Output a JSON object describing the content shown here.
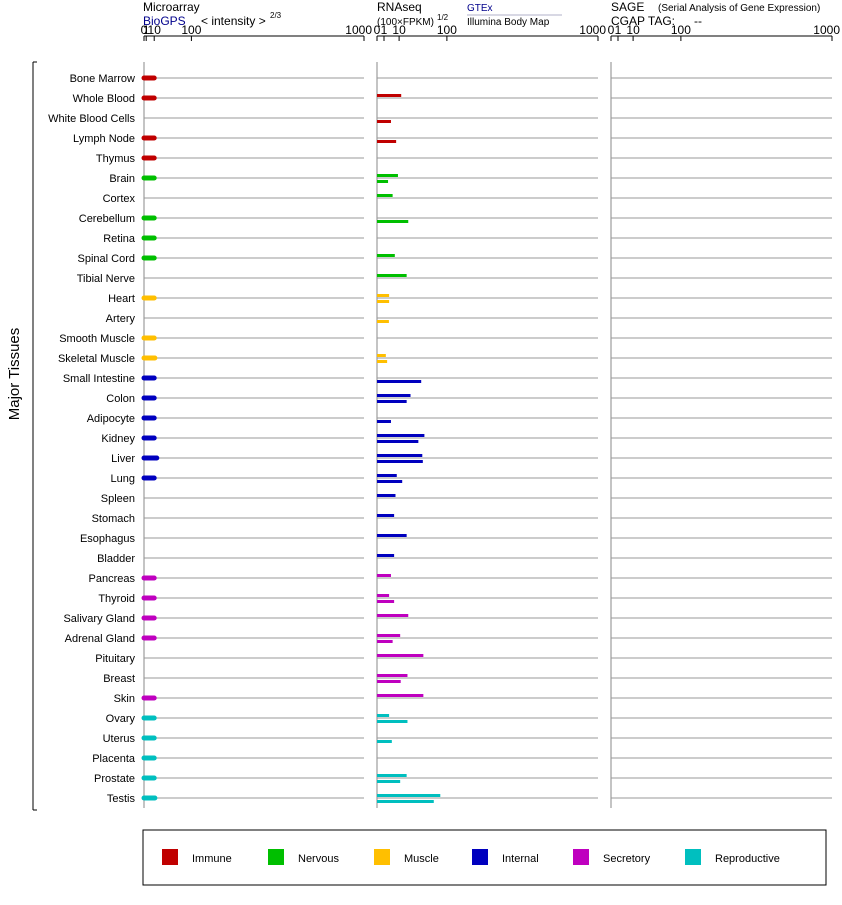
{
  "side_label": "Major Tissues",
  "panels": [
    {
      "title": "Microarray",
      "source": "BioGPS",
      "scale_label": "< intensity >",
      "scale_exp": "2/3",
      "ticks": [
        "0",
        "1",
        "10",
        "100",
        "1000"
      ]
    },
    {
      "title": "RNAseq",
      "source": "GTEx",
      "source2": "Illumina Body Map",
      "scale_label": "(100×FPKM)",
      "scale_exp": "1/2",
      "ticks": [
        "0",
        "1",
        "10",
        "100",
        "1000"
      ]
    },
    {
      "title": "SAGE",
      "subtitle": "(Serial Analysis of Gene Expression)",
      "tag_label": "CGAP TAG:",
      "tag_value": "--",
      "ticks": [
        "0",
        "1",
        "10",
        "100",
        "1000"
      ]
    }
  ],
  "colors": {
    "Immune": "#c00000",
    "Nervous": "#00bf00",
    "Muscle": "#ffbf00",
    "Internal": "#0000bf",
    "Secretory": "#bf00bf",
    "Reproductive": "#00bfbf"
  },
  "legend": [
    "Immune",
    "Nervous",
    "Muscle",
    "Internal",
    "Secretory",
    "Reproductive"
  ],
  "chart_data": {
    "type": "bar",
    "scale": "power",
    "xlim": [
      0,
      1000
    ],
    "categories": [
      "Bone Marrow",
      "Whole Blood",
      "White Blood Cells",
      "Lymph Node",
      "Thymus",
      "Brain",
      "Cortex",
      "Cerebellum",
      "Retina",
      "Spinal Cord",
      "Tibial Nerve",
      "Heart",
      "Artery",
      "Smooth Muscle",
      "Skeletal Muscle",
      "Small Intestine",
      "Colon",
      "Adipocyte",
      "Kidney",
      "Liver",
      "Lung",
      "Spleen",
      "Stomach",
      "Esophagus",
      "Bladder",
      "Pancreas",
      "Thyroid",
      "Salivary Gland",
      "Adrenal Gland",
      "Pituitary",
      "Breast",
      "Skin",
      "Ovary",
      "Uterus",
      "Placenta",
      "Prostate",
      "Testis"
    ],
    "groups": [
      "Immune",
      "Immune",
      "Immune",
      "Immune",
      "Immune",
      "Nervous",
      "Nervous",
      "Nervous",
      "Nervous",
      "Nervous",
      "Nervous",
      "Muscle",
      "Muscle",
      "Muscle",
      "Muscle",
      "Internal",
      "Internal",
      "Internal",
      "Internal",
      "Internal",
      "Internal",
      "Internal",
      "Internal",
      "Internal",
      "Internal",
      "Secretory",
      "Secretory",
      "Secretory",
      "Secretory",
      "Secretory",
      "Secretory",
      "Secretory",
      "Reproductive",
      "Reproductive",
      "Reproductive",
      "Reproductive",
      "Reproductive"
    ],
    "microarray": [
      10,
      10,
      null,
      10,
      10,
      10,
      null,
      10,
      10,
      10,
      null,
      10,
      null,
      10,
      11,
      10,
      10,
      10,
      10,
      14,
      10,
      null,
      null,
      null,
      null,
      10,
      10,
      10,
      10,
      null,
      null,
      10,
      10,
      10,
      10,
      10,
      11
    ],
    "rnaseq_gtex": [
      null,
      12,
      null,
      null,
      null,
      9,
      5,
      null,
      null,
      6.5,
      18,
      3,
      null,
      null,
      1.6,
      null,
      23,
      null,
      46,
      42,
      8,
      7,
      6,
      18,
      6,
      4,
      3,
      20,
      11,
      44,
      19,
      44,
      3,
      null,
      null,
      18,
      82
    ],
    "rnaseq_ibm": [
      null,
      null,
      4,
      7.5,
      null,
      2.5,
      null,
      20,
      null,
      null,
      null,
      3,
      2.9,
      null,
      2.1,
      40,
      18,
      4,
      35,
      43,
      13,
      null,
      null,
      null,
      null,
      null,
      6,
      null,
      5,
      null,
      11.5,
      null,
      19,
      4.5,
      null,
      11,
      66
    ]
  }
}
